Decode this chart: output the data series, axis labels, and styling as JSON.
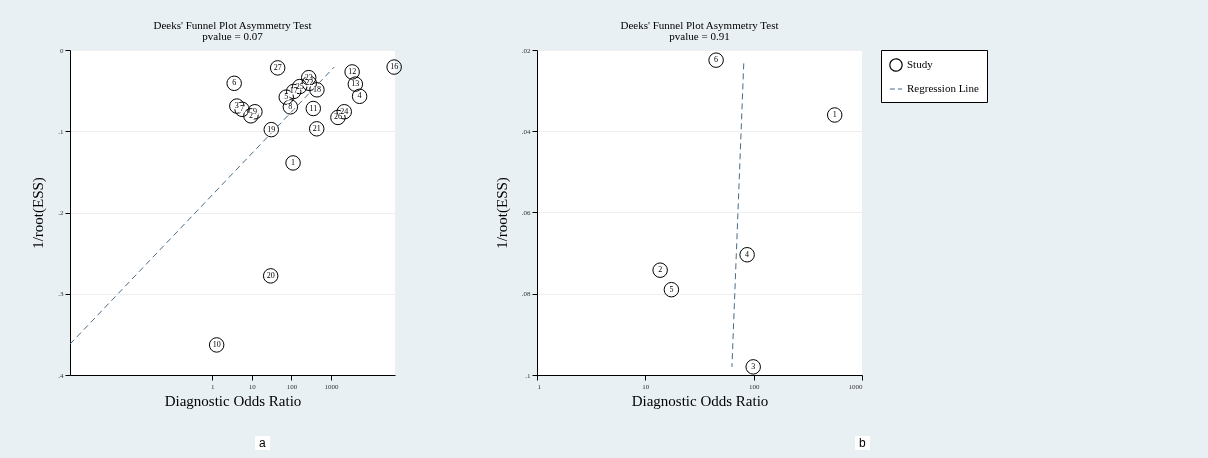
{
  "chart_data": [
    {
      "type": "scatter",
      "title": "Deeks' Funnel Plot Asymmetry Test",
      "subtitle": "pvalue =  0.07",
      "xlabel": "Diagnostic Odds Ratio",
      "ylabel": "1/root(ESS)",
      "log": "x",
      "grid": "y",
      "legend": "top right",
      "xlim": [
        0.00026,
        41000
      ],
      "xticks": [
        1,
        10,
        100,
        1000
      ],
      "ylim": [
        0.4,
        0
      ],
      "yticks": [
        0,
        {
          "value": 0.1,
          "label": ".1"
        },
        {
          "value": 0.2,
          "label": ".2"
        },
        {
          "value": 0.3,
          "label": ".3"
        },
        {
          "value": 0.4,
          "label": ".4"
        }
      ],
      "series": [
        {
          "name": "Study",
          "color": "#000000",
          "marker": "circle",
          "x": [
            45,
            3.6,
            3400,
            39000,
            4100,
            5250,
            273,
            282,
            162,
            440,
            114,
            74,
            94,
            356,
            2150,
            1490,
            4.2,
            5.7,
            12,
            9.5,
            31,
            435,
            110,
            30,
            1.3
          ],
          "values": [
            0.022,
            0.041,
            0.027,
            0.021,
            0.042,
            0.057,
            0.034,
            0.041,
            0.045,
            0.049,
            0.051,
            0.058,
            0.07,
            0.072,
            0.076,
            0.083,
            0.069,
            0.073,
            0.076,
            0.081,
            0.098,
            0.097,
            0.139,
            0.278,
            0.363
          ]
        },
        {
          "type": "line",
          "name": "Regression Line",
          "color": "#4a6b85",
          "line_style": "dashed",
          "x": [
            0.00026,
            1200
          ],
          "values": [
            0.362,
            0.021
          ]
        }
      ],
      "annotations": [
        {
          "text": "27",
          "x": 45,
          "y": 0.022
        },
        {
          "text": "6",
          "x": 3.6,
          "y": 0.041
        },
        {
          "text": "12",
          "x": 3400,
          "y": 0.027
        },
        {
          "text": "16",
          "x": 39000,
          "y": 0.021
        },
        {
          "text": "13",
          "x": 4100,
          "y": 0.042
        },
        {
          "text": "4",
          "x": 5250,
          "y": 0.057
        },
        {
          "text": "23",
          "x": 273,
          "y": 0.034
        },
        {
          "text": "22",
          "x": 282,
          "y": 0.041
        },
        {
          "text": "25",
          "x": 162,
          "y": 0.045
        },
        {
          "text": "18",
          "x": 440,
          "y": 0.049
        },
        {
          "text": "17",
          "x": 114,
          "y": 0.051
        },
        {
          "text": "5",
          "x": 74,
          "y": 0.058
        },
        {
          "text": "8",
          "x": 94,
          "y": 0.07
        },
        {
          "text": "11",
          "x": 356,
          "y": 0.072
        },
        {
          "text": "24",
          "x": 2150,
          "y": 0.076
        },
        {
          "text": "26",
          "x": 1490,
          "y": 0.083
        },
        {
          "text": "3",
          "x": 4.2,
          "y": 0.069
        },
        {
          "text": "7",
          "x": 5.7,
          "y": 0.073
        },
        {
          "text": "9",
          "x": 12,
          "y": 0.076
        },
        {
          "text": "2",
          "x": 9.5,
          "y": 0.081
        },
        {
          "text": "19",
          "x": 31,
          "y": 0.098
        },
        {
          "text": "21",
          "x": 435,
          "y": 0.097
        },
        {
          "text": "1",
          "x": 110,
          "y": 0.139
        },
        {
          "text": "20",
          "x": 30,
          "y": 0.278
        },
        {
          "text": "10",
          "x": 1.3,
          "y": 0.363
        },
        "a"
      ]
    },
    {
      "type": "scatter",
      "title": "Deeks' Funnel Plot Asymmetry Test",
      "subtitle": "pvalue =  0.91",
      "xlabel": "Diagnostic Odds Ratio",
      "ylabel": "1/root(ESS)",
      "log": "x",
      "grid": "y",
      "legend": "top right",
      "xlim": [
        1,
        1000
      ],
      "xticks": [
        1,
        10,
        100,
        1000
      ],
      "ylim": [
        0.1,
        0.02
      ],
      "yticks": [
        {
          "value": 0.02,
          "label": ".02"
        },
        {
          "value": 0.04,
          "label": ".04"
        },
        {
          "value": 0.06,
          "label": ".06"
        },
        {
          "value": 0.08,
          "label": ".08"
        },
        {
          "value": 0.1,
          "label": ".1"
        }
      ],
      "series": [
        {
          "name": "Study",
          "color": "#000000",
          "marker": "circle",
          "x": [
            45,
            560,
            87,
            13.7,
            17.4,
            99
          ],
          "values": [
            0.0225,
            0.036,
            0.0704,
            0.0742,
            0.079,
            0.098
          ]
        },
        {
          "type": "line",
          "name": "Regression Line",
          "color": "#4a6b85",
          "line_style": "dashed",
          "x": [
            81,
            63
          ],
          "values": [
            0.0233,
            0.098
          ]
        }
      ],
      "annotations": [
        {
          "text": "6",
          "x": 45,
          "y": 0.0225
        },
        {
          "text": "1",
          "x": 560,
          "y": 0.036
        },
        {
          "text": "4",
          "x": 87,
          "y": 0.0704
        },
        {
          "text": "2",
          "x": 13.7,
          "y": 0.0742
        },
        {
          "text": "5",
          "x": 17.4,
          "y": 0.079
        },
        {
          "text": "3",
          "x": 99,
          "y": 0.098
        },
        "b"
      ]
    }
  ]
}
